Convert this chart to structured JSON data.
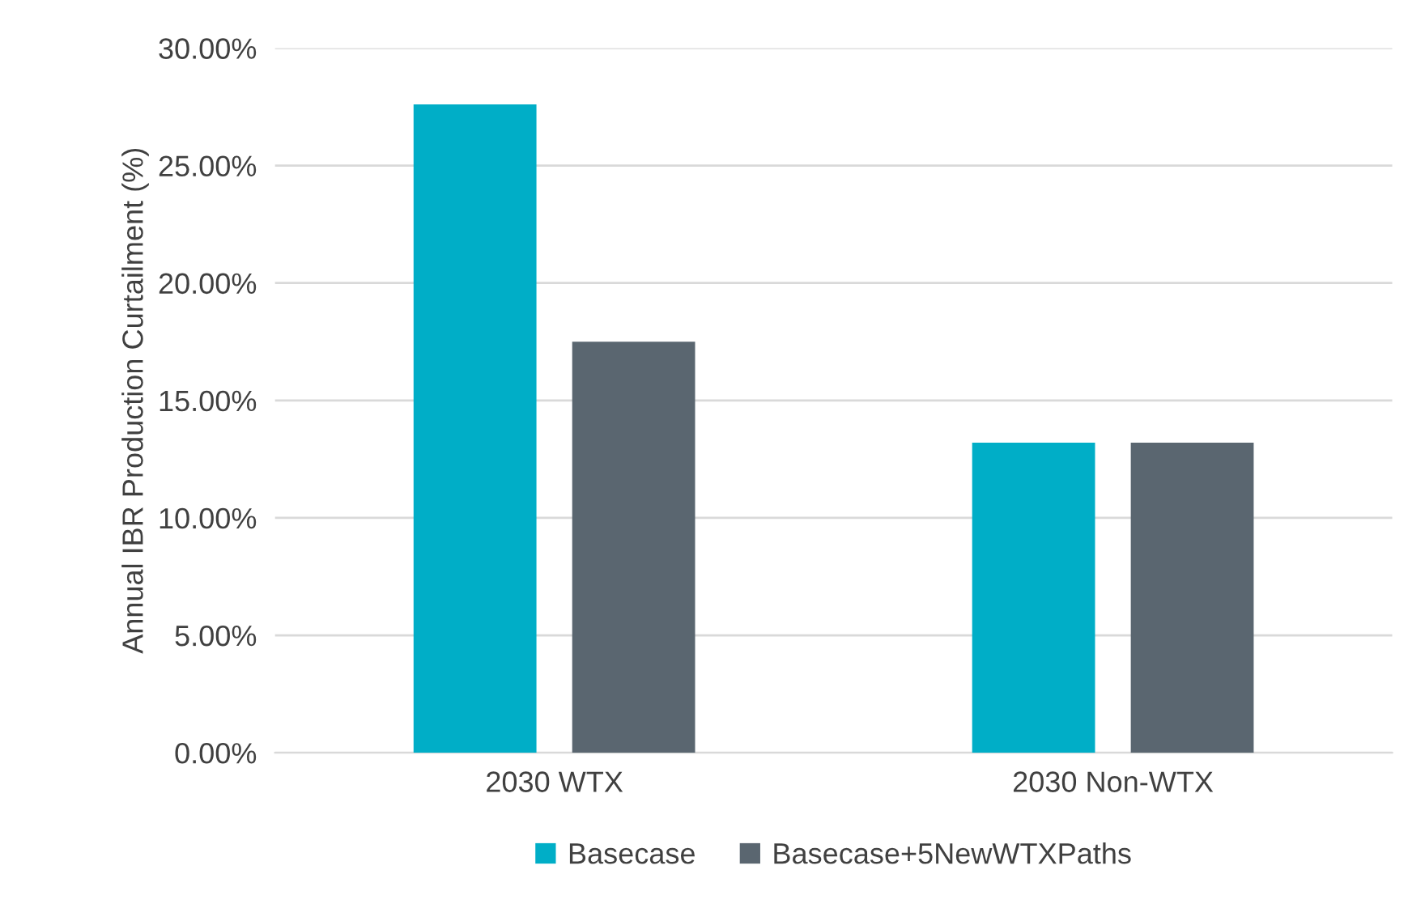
{
  "chart_data": {
    "type": "bar",
    "ylabel": "Annual IBR Production Curtailment (%)",
    "categories": [
      "2030 WTX",
      "2030 Non-WTX"
    ],
    "series": [
      {
        "name": "Basecase",
        "color": "#00aec7",
        "values": [
          27.6,
          13.2
        ]
      },
      {
        "name": "Basecase+5NewWTXPaths",
        "color": "#5a6670",
        "values": [
          17.5,
          13.2
        ]
      }
    ],
    "ylim": [
      0,
      30
    ],
    "yticks": [
      {
        "value": 0,
        "label": "0.00%"
      },
      {
        "value": 5,
        "label": "5.00%"
      },
      {
        "value": 10,
        "label": "10.00%"
      },
      {
        "value": 15,
        "label": "15.00%"
      },
      {
        "value": 20,
        "label": "20.00%"
      },
      {
        "value": 25,
        "label": "25.00%"
      },
      {
        "value": 30,
        "label": "30.00%"
      }
    ],
    "grid": "y",
    "legend": "bottom"
  }
}
